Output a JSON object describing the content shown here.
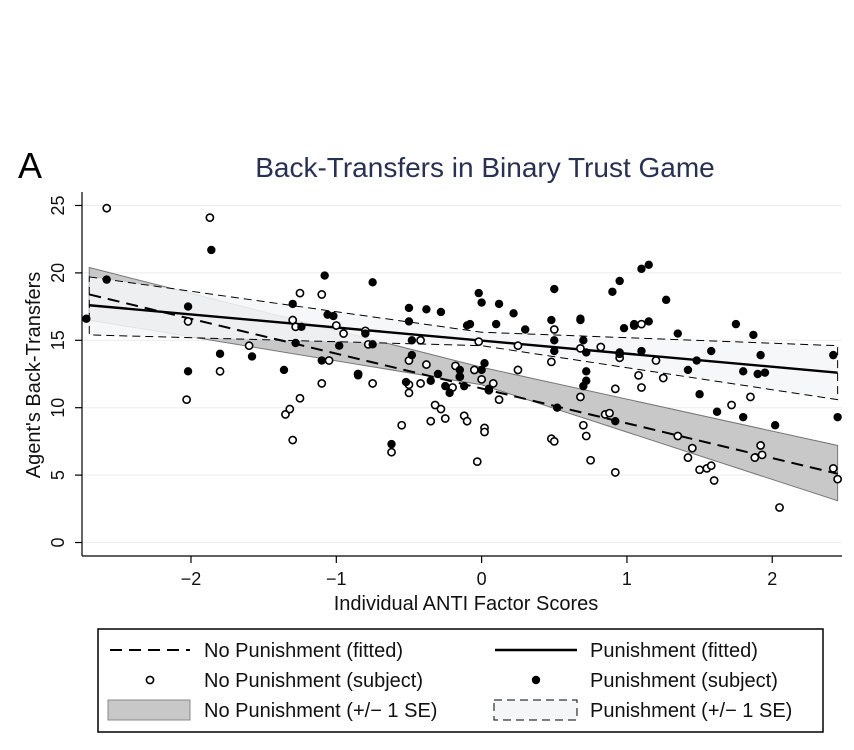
{
  "panel_label": "A",
  "chart_data": {
    "type": "scatter",
    "title": "Back-Transfers in Binary Trust Game",
    "xlabel": "Individual ANTI Factor Scores",
    "ylabel": "Agent's Back-Transfers",
    "xlim": [
      -2.75,
      2.48
    ],
    "ylim": [
      -1,
      26
    ],
    "xticks": [
      -2,
      -1,
      0,
      1,
      2
    ],
    "yticks": [
      0,
      5,
      10,
      15,
      20,
      25
    ],
    "xtick_labels": [
      "−2",
      "−1",
      "0",
      "1",
      "2"
    ],
    "ytick_labels": [
      "0",
      "5",
      "10",
      "15",
      "20",
      "25"
    ],
    "grid": "horizontal",
    "legend_position": "bottom",
    "colors": {
      "title": "#283152",
      "band_no_punish": "#c8c8c8",
      "band_punish": "#f4f6f8",
      "marker": "#000000"
    },
    "series": [
      {
        "name": "No Punishment (fitted)",
        "kind": "line",
        "style": "dashed",
        "x": [
          -2.7,
          2.45
        ],
        "y": [
          18.4,
          5.1
        ]
      },
      {
        "name": "Punishment (fitted)",
        "kind": "line",
        "style": "solid",
        "x": [
          -2.7,
          2.45
        ],
        "y": [
          17.6,
          12.6
        ]
      },
      {
        "name": "No Punishment (+/− 1 SE)",
        "kind": "band",
        "x": [
          -2.7,
          0.0,
          2.45
        ],
        "lower": [
          16.5,
          11.7,
          3.1
        ],
        "upper": [
          20.4,
          13.0,
          7.2
        ]
      },
      {
        "name": "Punishment (+/− 1 SE)",
        "kind": "band",
        "x": [
          -2.7,
          0.0,
          2.45
        ],
        "lower": [
          15.4,
          14.6,
          10.6
        ],
        "upper": [
          19.7,
          15.6,
          14.6
        ]
      },
      {
        "name": "No Punishment (subject)",
        "kind": "scatter",
        "marker": "hollow-circle",
        "points": [
          [
            -2.58,
            24.8
          ],
          [
            -1.87,
            24.1
          ],
          [
            -1.25,
            18.5
          ],
          [
            -1.1,
            18.4
          ],
          [
            -2.02,
            16.4
          ],
          [
            -1.8,
            12.7
          ],
          [
            -2.03,
            10.6
          ],
          [
            -1.3,
            16.5
          ],
          [
            -1.28,
            16.0
          ],
          [
            -1.6,
            14.6
          ],
          [
            -1.35,
            9.5
          ],
          [
            -1.32,
            9.9
          ],
          [
            -1.25,
            10.7
          ],
          [
            -1.3,
            7.6
          ],
          [
            -1.0,
            16.1
          ],
          [
            -0.8,
            15.7
          ],
          [
            -0.95,
            15.5
          ],
          [
            -0.78,
            14.7
          ],
          [
            -1.05,
            13.5
          ],
          [
            -1.1,
            11.8
          ],
          [
            -0.85,
            12.5
          ],
          [
            -0.75,
            11.8
          ],
          [
            -0.62,
            6.7
          ],
          [
            -0.55,
            8.7
          ],
          [
            -0.5,
            13.5
          ],
          [
            -0.42,
            15.0
          ],
          [
            -0.38,
            13.2
          ],
          [
            -0.5,
            11.7
          ],
          [
            -0.5,
            11.1
          ],
          [
            -0.42,
            11.8
          ],
          [
            -0.32,
            10.2
          ],
          [
            -0.28,
            9.9
          ],
          [
            -0.25,
            9.2
          ],
          [
            -0.35,
            9.0
          ],
          [
            -0.2,
            11.5
          ],
          [
            -0.18,
            13.1
          ],
          [
            -0.15,
            12.3
          ],
          [
            -0.12,
            9.4
          ],
          [
            -0.1,
            9.0
          ],
          [
            -0.05,
            12.8
          ],
          [
            -0.02,
            14.9
          ],
          [
            0.0,
            12.1
          ],
          [
            0.05,
            11.3
          ],
          [
            0.08,
            11.8
          ],
          [
            0.02,
            8.5
          ],
          [
            0.02,
            8.2
          ],
          [
            -0.03,
            6.0
          ],
          [
            0.12,
            10.6
          ],
          [
            0.25,
            12.8
          ],
          [
            0.25,
            14.6
          ],
          [
            0.5,
            15.8
          ],
          [
            0.48,
            13.4
          ],
          [
            0.48,
            7.7
          ],
          [
            0.5,
            7.5
          ],
          [
            0.68,
            14.4
          ],
          [
            0.68,
            10.8
          ],
          [
            0.7,
            8.7
          ],
          [
            0.72,
            7.9
          ],
          [
            0.75,
            6.1
          ],
          [
            0.82,
            14.5
          ],
          [
            0.85,
            9.5
          ],
          [
            0.88,
            9.6
          ],
          [
            0.92,
            11.4
          ],
          [
            0.95,
            13.7
          ],
          [
            0.95,
            14.0
          ],
          [
            1.05,
            16.1
          ],
          [
            1.1,
            16.2
          ],
          [
            1.08,
            12.4
          ],
          [
            1.1,
            11.5
          ],
          [
            1.2,
            13.5
          ],
          [
            1.25,
            12.2
          ],
          [
            1.35,
            7.9
          ],
          [
            1.45,
            7.0
          ],
          [
            1.5,
            5.4
          ],
          [
            1.55,
            5.5
          ],
          [
            1.6,
            4.6
          ],
          [
            1.58,
            5.7
          ],
          [
            1.42,
            6.3
          ],
          [
            0.92,
            5.2
          ],
          [
            1.72,
            10.2
          ],
          [
            1.85,
            10.8
          ],
          [
            1.88,
            6.3
          ],
          [
            1.92,
            7.2
          ],
          [
            1.93,
            6.5
          ],
          [
            2.05,
            2.6
          ],
          [
            2.42,
            5.5
          ],
          [
            2.45,
            4.7
          ]
        ]
      },
      {
        "name": "Punishment (subject)",
        "kind": "scatter",
        "marker": "filled-circle",
        "points": [
          [
            -2.72,
            16.6
          ],
          [
            -2.58,
            19.5
          ],
          [
            -1.86,
            21.7
          ],
          [
            -2.02,
            17.5
          ],
          [
            -1.8,
            14.0
          ],
          [
            -2.02,
            12.7
          ],
          [
            -1.58,
            13.8
          ],
          [
            -1.36,
            12.8
          ],
          [
            -1.3,
            17.7
          ],
          [
            -1.28,
            14.8
          ],
          [
            -1.24,
            16.0
          ],
          [
            -1.08,
            19.8
          ],
          [
            -1.06,
            16.9
          ],
          [
            -1.02,
            16.8
          ],
          [
            -0.98,
            14.6
          ],
          [
            -1.1,
            13.5
          ],
          [
            -0.8,
            15.5
          ],
          [
            -0.75,
            19.3
          ],
          [
            -0.75,
            14.7
          ],
          [
            -0.85,
            12.4
          ],
          [
            -0.62,
            7.3
          ],
          [
            -0.52,
            11.9
          ],
          [
            -0.5,
            17.4
          ],
          [
            -0.5,
            16.4
          ],
          [
            -0.48,
            15.0
          ],
          [
            -0.48,
            13.9
          ],
          [
            -0.38,
            17.3
          ],
          [
            -0.28,
            17.1
          ],
          [
            -0.35,
            12.0
          ],
          [
            -0.3,
            12.5
          ],
          [
            -0.25,
            11.6
          ],
          [
            -0.22,
            11.1
          ],
          [
            -0.15,
            12.8
          ],
          [
            -0.15,
            12.3
          ],
          [
            -0.12,
            11.6
          ],
          [
            -0.1,
            16.1
          ],
          [
            -0.08,
            16.2
          ],
          [
            -0.02,
            18.5
          ],
          [
            0.0,
            17.8
          ],
          [
            0.02,
            13.3
          ],
          [
            0.0,
            12.8
          ],
          [
            0.05,
            11.4
          ],
          [
            0.1,
            16.2
          ],
          [
            0.12,
            17.7
          ],
          [
            0.22,
            17.0
          ],
          [
            0.3,
            15.8
          ],
          [
            0.48,
            16.5
          ],
          [
            0.5,
            18.8
          ],
          [
            0.5,
            15.0
          ],
          [
            0.5,
            14.2
          ],
          [
            0.52,
            10.0
          ],
          [
            0.68,
            16.6
          ],
          [
            0.68,
            16.5
          ],
          [
            0.7,
            15.0
          ],
          [
            0.72,
            14.1
          ],
          [
            0.72,
            12.0
          ],
          [
            0.7,
            11.6
          ],
          [
            0.72,
            12.7
          ],
          [
            0.9,
            18.6
          ],
          [
            0.95,
            19.4
          ],
          [
            0.98,
            15.9
          ],
          [
            0.95,
            14.1
          ],
          [
            0.92,
            9.0
          ],
          [
            1.05,
            16.2
          ],
          [
            1.1,
            20.3
          ],
          [
            1.15,
            20.6
          ],
          [
            1.15,
            16.4
          ],
          [
            1.1,
            14.2
          ],
          [
            1.27,
            18.0
          ],
          [
            1.35,
            15.5
          ],
          [
            1.42,
            12.8
          ],
          [
            1.48,
            13.5
          ],
          [
            1.5,
            11.0
          ],
          [
            1.58,
            14.2
          ],
          [
            1.62,
            9.7
          ],
          [
            1.75,
            16.2
          ],
          [
            1.8,
            12.7
          ],
          [
            1.87,
            15.4
          ],
          [
            1.9,
            12.5
          ],
          [
            1.92,
            13.9
          ],
          [
            1.95,
            12.6
          ],
          [
            2.02,
            8.7
          ],
          [
            2.42,
            13.9
          ],
          [
            2.45,
            9.3
          ],
          [
            1.8,
            9.3
          ]
        ]
      }
    ]
  }
}
